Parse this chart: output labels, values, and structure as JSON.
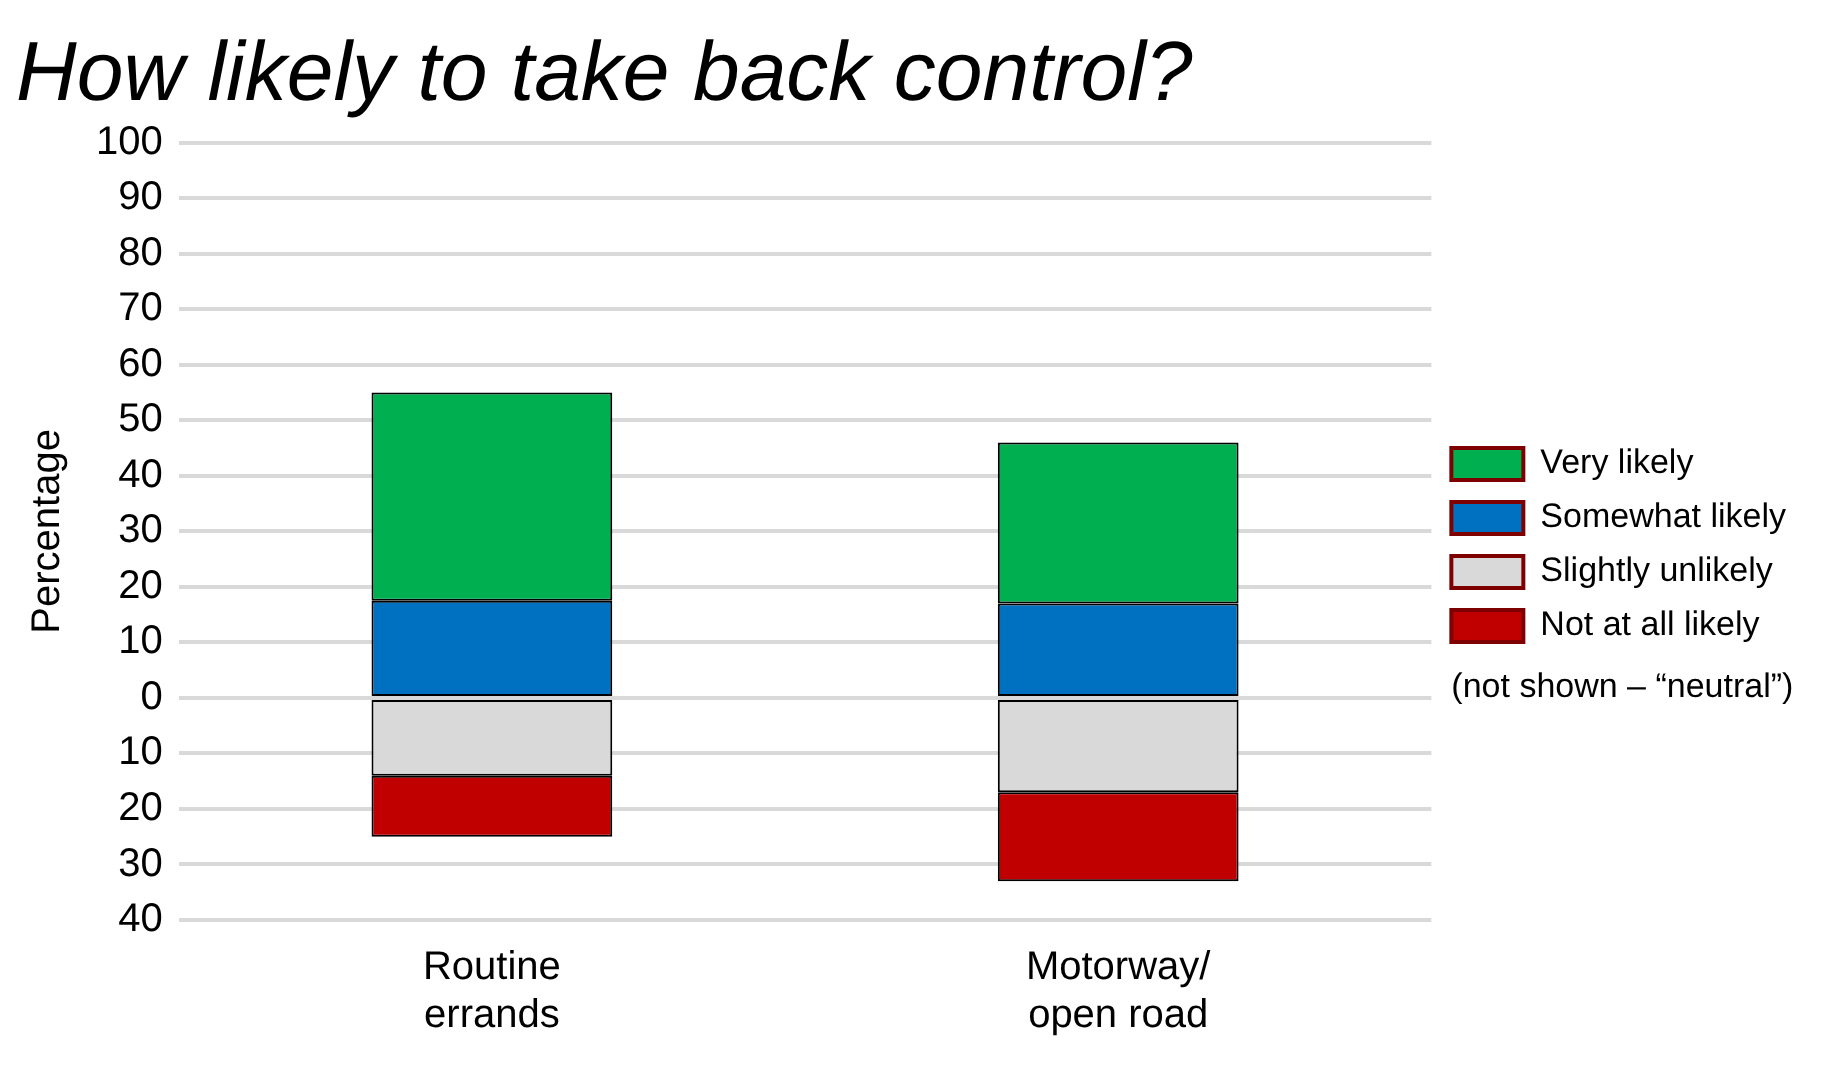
{
  "chart_data": {
    "type": "bar",
    "title": "How likely to take back control?",
    "ylabel": "Percentage",
    "categories": [
      "Routine errands",
      "Motorway/ open road"
    ],
    "stacked": true,
    "series": [
      {
        "name": "Somewhat likely",
        "color": "#0070c0",
        "values": [
          17.5,
          17
        ]
      },
      {
        "name": "Very likely",
        "color": "#00b050",
        "values": [
          37.5,
          29
        ]
      },
      {
        "name": "Slightly unlikely",
        "color": "#d9d9d9",
        "values": [
          -14,
          -17
        ]
      },
      {
        "name": "Not at all likely",
        "color": "#c00000",
        "values": [
          -11,
          -16
        ]
      }
    ],
    "ylim": [
      -40,
      100
    ],
    "yticks": [
      {
        "value": -40,
        "label": "40"
      },
      {
        "value": -30,
        "label": "30"
      },
      {
        "value": -20,
        "label": "20"
      },
      {
        "value": -10,
        "label": "10"
      },
      0,
      10,
      20,
      30,
      40,
      50,
      60,
      70,
      80,
      90,
      100
    ],
    "grid": "y",
    "legend": "right",
    "annotations": [
      "(not shown – “neutral”)"
    ]
  }
}
